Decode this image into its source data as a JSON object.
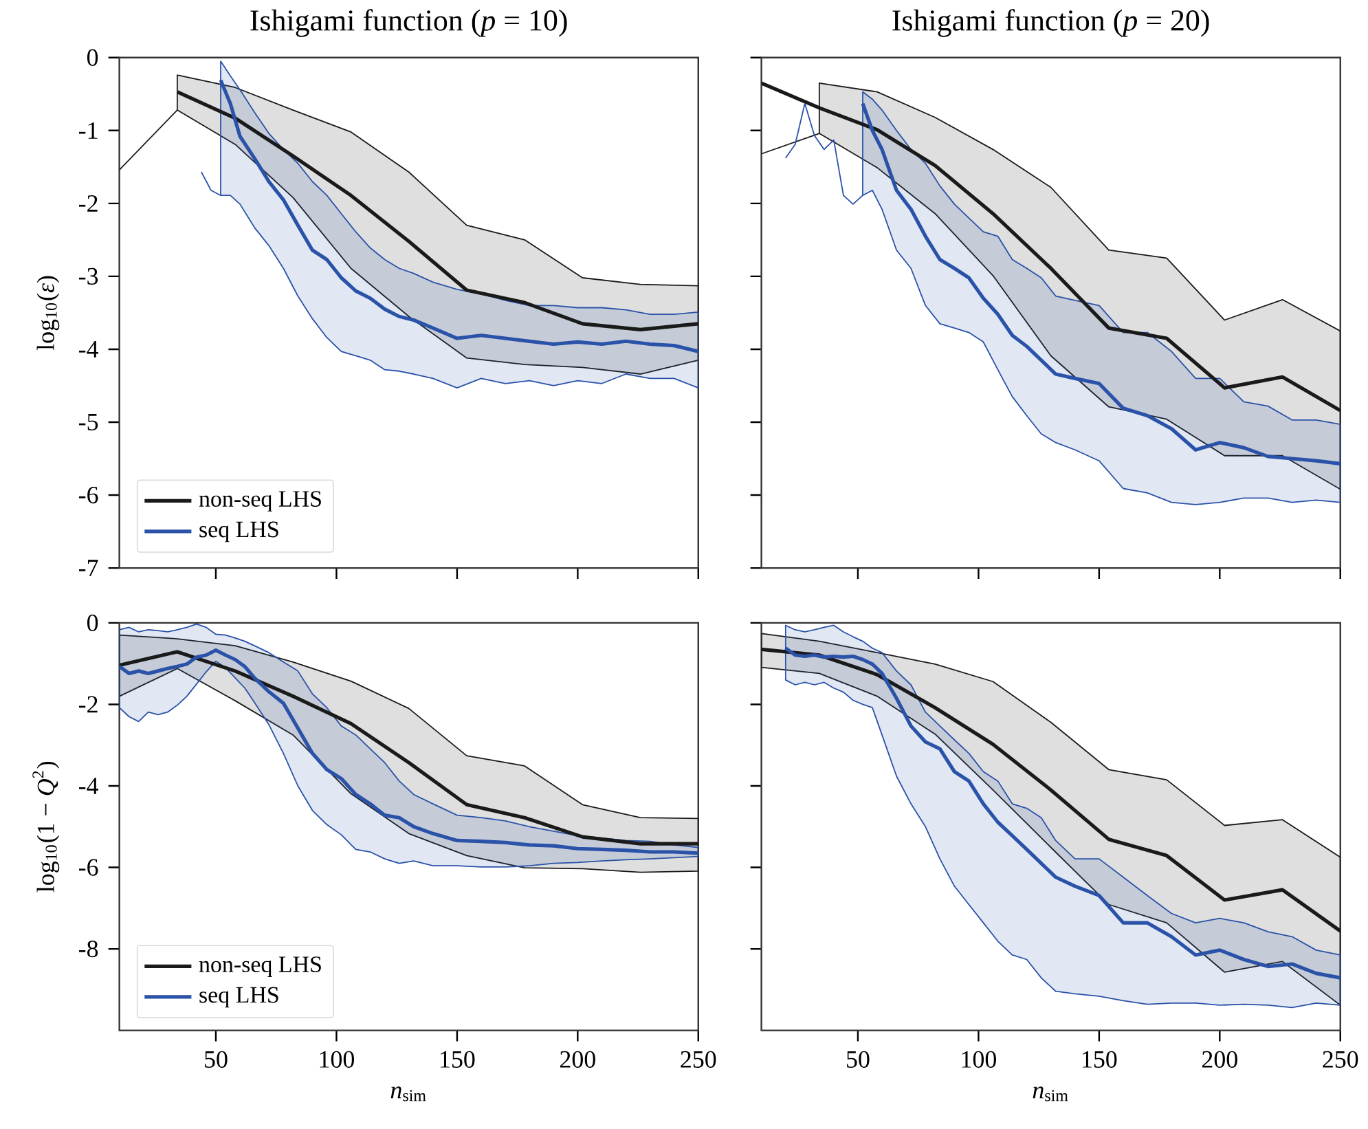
{
  "chart_data": [
    {
      "type": "line",
      "title": "Ishigami function (*p* = 10)",
      "ylabel": "log$_{10}$(*ε*)",
      "xlim": [
        10,
        250
      ],
      "xticks": [
        50,
        100,
        150,
        200,
        250
      ],
      "ylim": [
        -7,
        0
      ],
      "yticks": [
        -7,
        -6,
        -5,
        -4,
        -3,
        -2,
        -1,
        0
      ],
      "tick_labels": "y",
      "legend": "bottom left",
      "marker": "none",
      "series": [
        {
          "name": "non-seq LHS",
          "color": "#1a1a1a",
          "x": [
            34,
            58,
            82,
            106,
            130,
            154,
            178,
            202,
            226,
            250
          ],
          "values": [
            -0.47,
            -0.83,
            -1.35,
            -1.89,
            -2.52,
            -3.19,
            -3.36,
            -3.65,
            -3.73,
            -3.65
          ],
          "upper": [
            -0.24,
            -0.41,
            -0.72,
            -1.02,
            -1.57,
            -2.3,
            -2.5,
            -3.02,
            -3.11,
            -3.13
          ],
          "lower": [
            -0.72,
            -1.19,
            -1.92,
            -2.89,
            -3.55,
            -4.12,
            -4.21,
            -4.25,
            -4.34,
            -4.15
          ]
        },
        {
          "type": "line",
          "color": "#1a1a1a",
          "x": [
            10,
            34
          ],
          "values": [
            -1.54,
            -0.72
          ]
        },
        {
          "type": "line",
          "color": "#2a52a8",
          "x": [
            44,
            48,
            52
          ],
          "values": [
            -1.57,
            -1.82,
            -1.89
          ]
        },
        {
          "name": "seq LHS",
          "color": "#2a52a8",
          "x": [
            52,
            56,
            60,
            66,
            72,
            78,
            84,
            90,
            96,
            102,
            108,
            114,
            120,
            126,
            132,
            140,
            150,
            160,
            170,
            180,
            190,
            200,
            210,
            220,
            230,
            240,
            250
          ],
          "values": [
            -0.31,
            -0.63,
            -1.08,
            -1.38,
            -1.7,
            -1.95,
            -2.3,
            -2.64,
            -2.77,
            -3.02,
            -3.2,
            -3.3,
            -3.45,
            -3.55,
            -3.6,
            -3.71,
            -3.85,
            -3.81,
            -3.85,
            -3.89,
            -3.93,
            -3.9,
            -3.93,
            -3.89,
            -3.93,
            -3.95,
            -4.03
          ],
          "upper": [
            -0.05,
            -0.25,
            -0.44,
            -0.75,
            -1.04,
            -1.26,
            -1.45,
            -1.7,
            -1.89,
            -2.14,
            -2.39,
            -2.61,
            -2.77,
            -2.89,
            -2.96,
            -3.08,
            -3.18,
            -3.24,
            -3.33,
            -3.4,
            -3.4,
            -3.43,
            -3.43,
            -3.46,
            -3.52,
            -3.52,
            -3.49
          ],
          "lower": [
            -1.89,
            -1.89,
            -2.01,
            -2.33,
            -2.58,
            -2.89,
            -3.27,
            -3.58,
            -3.84,
            -4.03,
            -4.09,
            -4.15,
            -4.28,
            -4.3,
            -4.34,
            -4.4,
            -4.53,
            -4.4,
            -4.47,
            -4.43,
            -4.5,
            -4.43,
            -4.47,
            -4.34,
            -4.4,
            -4.4,
            -4.53
          ]
        }
      ]
    },
    {
      "type": "line",
      "title": "Ishigami function (*p* = 20)",
      "xlim": [
        10,
        250
      ],
      "xticks": [
        50,
        100,
        150,
        200,
        250
      ],
      "ylim": [
        -7,
        0
      ],
      "yticks": [
        -7,
        -6,
        -5,
        -4,
        -3,
        -2,
        -1,
        0
      ],
      "tick_labels": false,
      "marker": "none",
      "series": [
        {
          "color": "#1a1a1a",
          "x": [
            10,
            34,
            58,
            82,
            106,
            130,
            154,
            178,
            202,
            226,
            250
          ],
          "values": [
            -0.35,
            -0.69,
            -0.99,
            -1.48,
            -2.14,
            -2.89,
            -3.71,
            -3.85,
            -4.53,
            -4.38,
            -4.84
          ],
          "upper": [
            null,
            -0.35,
            -0.47,
            -0.82,
            -1.26,
            -1.78,
            -2.64,
            -2.75,
            -3.6,
            -3.32,
            -3.75
          ],
          "lower": [
            null,
            -1.04,
            -1.51,
            -2.14,
            -2.99,
            -4.09,
            -4.79,
            -4.96,
            -5.46,
            -5.46,
            -5.92
          ]
        },
        {
          "type": "line",
          "color": "#1a1a1a",
          "x": [
            10,
            34
          ],
          "values": [
            -1.32,
            -1.04
          ]
        },
        {
          "type": "line",
          "color": "#2a52a8",
          "x": [
            20,
            24,
            28,
            32,
            36,
            40,
            44,
            48,
            52
          ],
          "values": [
            -1.38,
            -1.19,
            -0.63,
            -1.07,
            -1.26,
            -1.13,
            -1.89,
            -2.01,
            -1.89
          ]
        },
        {
          "color": "#2a52a8",
          "x": [
            52,
            56,
            60,
            66,
            72,
            78,
            84,
            90,
            96,
            102,
            108,
            114,
            120,
            126,
            132,
            140,
            150,
            160,
            170,
            180,
            190,
            200,
            210,
            220,
            230,
            240,
            250
          ],
          "values": [
            -0.63,
            -1.0,
            -1.26,
            -1.82,
            -2.08,
            -2.45,
            -2.77,
            -2.89,
            -3.02,
            -3.3,
            -3.52,
            -3.81,
            -3.96,
            -4.15,
            -4.34,
            -4.4,
            -4.47,
            -4.81,
            -4.91,
            -5.09,
            -5.38,
            -5.28,
            -5.35,
            -5.47,
            -5.5,
            -5.53,
            -5.57
          ],
          "upper": [
            -0.47,
            -0.57,
            -0.72,
            -1.0,
            -1.26,
            -1.45,
            -1.76,
            -2.01,
            -2.2,
            -2.39,
            -2.45,
            -2.77,
            -2.89,
            -3.02,
            -3.27,
            -3.33,
            -3.4,
            -3.77,
            -3.77,
            -4.03,
            -4.4,
            -4.4,
            -4.72,
            -4.78,
            -4.97,
            -4.97,
            -5.03
          ],
          "lower": [
            -1.89,
            -1.82,
            -2.08,
            -2.64,
            -2.89,
            -3.4,
            -3.65,
            -3.71,
            -3.77,
            -3.9,
            -4.28,
            -4.65,
            -4.91,
            -5.16,
            -5.28,
            -5.38,
            -5.53,
            -5.91,
            -5.97,
            -6.1,
            -6.13,
            -6.1,
            -6.04,
            -6.04,
            -6.1,
            -6.07,
            -6.1
          ]
        }
      ]
    },
    {
      "type": "line",
      "xlabel": "*n*$_{sim}$",
      "ylabel": "log$_{10}$(1 − *Q*$^{2}$)",
      "xlim": [
        10,
        250
      ],
      "xticks": [
        50,
        100,
        150,
        200,
        250
      ],
      "ylim": [
        -10,
        0
      ],
      "yticks": [
        -8,
        -6,
        -4,
        -2,
        0
      ],
      "legend": "bottom left",
      "marker": "none",
      "series": [
        {
          "name": "non-seq LHS",
          "color": "#1a1a1a",
          "x": [
            10,
            34,
            58,
            82,
            106,
            130,
            154,
            178,
            202,
            226,
            250
          ],
          "values": [
            -1.04,
            -0.71,
            -1.18,
            -1.8,
            -2.47,
            -3.43,
            -4.46,
            -4.78,
            -5.25,
            -5.42,
            -5.42
          ],
          "upper": [
            -0.3,
            -0.39,
            -0.56,
            -0.96,
            -1.43,
            -2.1,
            -3.26,
            -3.51,
            -4.46,
            -4.78,
            -4.8
          ],
          "lower": [
            -1.8,
            -1.12,
            -1.91,
            -2.75,
            -4.19,
            -5.17,
            -5.71,
            -6.01,
            -6.03,
            -6.12,
            -6.09
          ]
        },
        {
          "name": "seq LHS",
          "color": "#2a52a8",
          "x": [
            10,
            14,
            18,
            22,
            26,
            30,
            34,
            38,
            42,
            46,
            50,
            54,
            58,
            62,
            66,
            72,
            78,
            84,
            90,
            96,
            102,
            108,
            114,
            120,
            126,
            132,
            140,
            150,
            160,
            170,
            180,
            190,
            200,
            210,
            220,
            230,
            240,
            250
          ],
          "values": [
            -1.07,
            -1.24,
            -1.18,
            -1.24,
            -1.18,
            -1.12,
            -1.07,
            -1.01,
            -0.84,
            -0.79,
            -0.67,
            -0.79,
            -0.9,
            -1.07,
            -1.35,
            -1.69,
            -1.97,
            -2.58,
            -3.2,
            -3.6,
            -3.82,
            -4.21,
            -4.44,
            -4.72,
            -4.78,
            -5.0,
            -5.17,
            -5.34,
            -5.36,
            -5.39,
            -5.45,
            -5.47,
            -5.54,
            -5.56,
            -5.58,
            -5.62,
            -5.62,
            -5.65
          ],
          "upper": [
            -0.17,
            -0.11,
            -0.22,
            -0.17,
            -0.19,
            -0.22,
            -0.17,
            -0.11,
            -0.03,
            -0.11,
            -0.28,
            -0.3,
            -0.37,
            -0.45,
            -0.56,
            -0.73,
            -0.96,
            -1.18,
            -1.74,
            -2.08,
            -2.53,
            -2.75,
            -3.09,
            -3.43,
            -3.88,
            -4.21,
            -4.44,
            -4.72,
            -4.78,
            -4.86,
            -5.0,
            -5.11,
            -5.22,
            -5.28,
            -5.34,
            -5.36,
            -5.45,
            -5.51
          ],
          "lower": [
            -2.08,
            -2.3,
            -2.42,
            -2.19,
            -2.25,
            -2.19,
            -2.02,
            -1.8,
            -1.5,
            -1.2,
            -0.94,
            -1.1,
            -1.35,
            -1.6,
            -1.95,
            -2.5,
            -3.2,
            -4.0,
            -4.6,
            -4.95,
            -5.2,
            -5.56,
            -5.62,
            -5.79,
            -5.9,
            -5.84,
            -5.96,
            -5.96,
            -5.99,
            -5.99,
            -5.96,
            -5.9,
            -5.88,
            -5.84,
            -5.81,
            -5.79,
            -5.76,
            -5.73
          ]
        }
      ]
    },
    {
      "type": "line",
      "xlabel": "*n*$_{sim}$",
      "xlim": [
        10,
        250
      ],
      "xticks": [
        50,
        100,
        150,
        200,
        250
      ],
      "ylim": [
        -10,
        0
      ],
      "yticks": [
        -8,
        -6,
        -4,
        -2,
        0
      ],
      "tick_labels": "x",
      "marker": "none",
      "series": [
        {
          "color": "#1a1a1a",
          "x": [
            10,
            34,
            58,
            82,
            106,
            130,
            154,
            178,
            202,
            226,
            250
          ],
          "values": [
            -0.65,
            -0.79,
            -1.27,
            -2.08,
            -2.98,
            -4.1,
            -5.31,
            -5.71,
            -6.8,
            -6.55,
            -7.56
          ],
          "upper": [
            -0.26,
            -0.45,
            -0.73,
            -1.01,
            -1.44,
            -2.44,
            -3.6,
            -3.85,
            -4.97,
            -4.83,
            -5.75
          ],
          "lower": [
            -1.09,
            -1.24,
            -1.8,
            -2.73,
            -4.1,
            -5.51,
            -6.91,
            -7.36,
            -8.57,
            -8.31,
            -9.38
          ]
        },
        {
          "color": "#2a52a8",
          "x": [
            20,
            24,
            28,
            32,
            36,
            40,
            44,
            48,
            52,
            56,
            60,
            66,
            72,
            78,
            84,
            90,
            96,
            102,
            108,
            114,
            120,
            126,
            132,
            140,
            150,
            160,
            170,
            180,
            190,
            200,
            210,
            220,
            230,
            240,
            250
          ],
          "values": [
            -0.62,
            -0.79,
            -0.82,
            -0.79,
            -0.84,
            -0.82,
            -0.84,
            -0.82,
            -0.9,
            -1.01,
            -1.24,
            -1.85,
            -2.53,
            -2.92,
            -3.09,
            -3.65,
            -3.88,
            -4.44,
            -4.89,
            -5.22,
            -5.56,
            -5.9,
            -6.24,
            -6.46,
            -6.69,
            -7.36,
            -7.36,
            -7.7,
            -8.15,
            -8.03,
            -8.26,
            -8.43,
            -8.37,
            -8.6,
            -8.71
          ],
          "upper": [
            -0.06,
            -0.17,
            -0.22,
            -0.17,
            -0.11,
            -0.06,
            -0.22,
            -0.34,
            -0.45,
            -0.62,
            -0.73,
            -1.18,
            -1.52,
            -2.19,
            -2.53,
            -2.87,
            -3.2,
            -3.65,
            -3.88,
            -4.44,
            -4.55,
            -4.78,
            -5.34,
            -5.79,
            -5.79,
            -6.24,
            -6.69,
            -7.13,
            -7.36,
            -7.25,
            -7.36,
            -7.58,
            -7.7,
            -8.03,
            -8.15
          ],
          "lower": [
            -1.4,
            -1.52,
            -1.46,
            -1.52,
            -1.46,
            -1.6,
            -1.7,
            -1.9,
            -2.0,
            -2.08,
            -2.75,
            -3.76,
            -4.44,
            -5.0,
            -5.79,
            -6.46,
            -6.91,
            -7.36,
            -7.81,
            -8.15,
            -8.26,
            -8.71,
            -9.04,
            -9.1,
            -9.16,
            -9.27,
            -9.36,
            -9.33,
            -9.33,
            -9.38,
            -9.36,
            -9.38,
            -9.44,
            -9.33,
            -9.38
          ]
        }
      ]
    }
  ]
}
